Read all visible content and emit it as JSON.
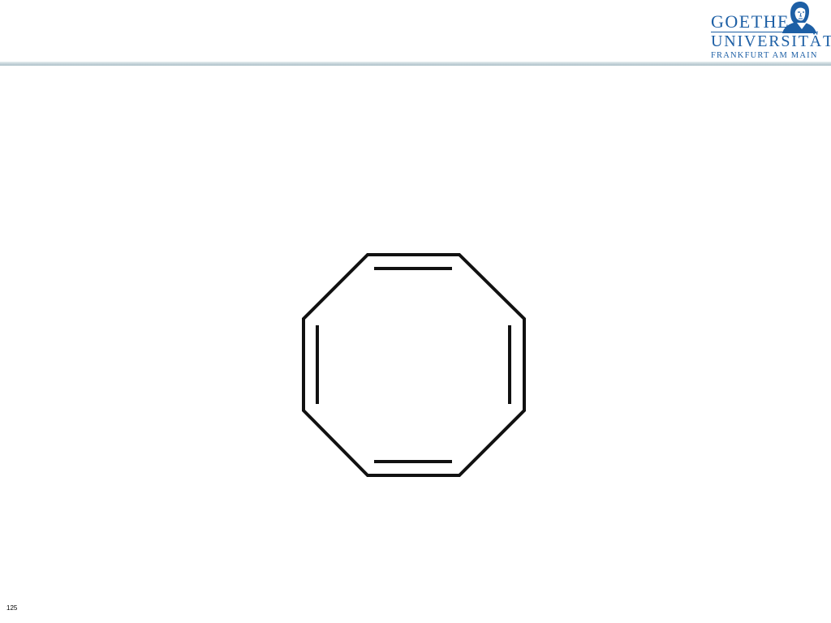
{
  "logo": {
    "line1": "GOETHE",
    "line2": "UNIVERSITÄT",
    "line3": "FRANKFURT AM MAIN",
    "color": "#1d5fa5"
  },
  "diagram": {
    "molecule": "cyclooctatetraene",
    "ring_size": 8,
    "double_bond_edges": [
      "top",
      "right",
      "bottom",
      "left"
    ],
    "stroke_color": "#111111"
  },
  "slide": {
    "page_number": "125"
  }
}
